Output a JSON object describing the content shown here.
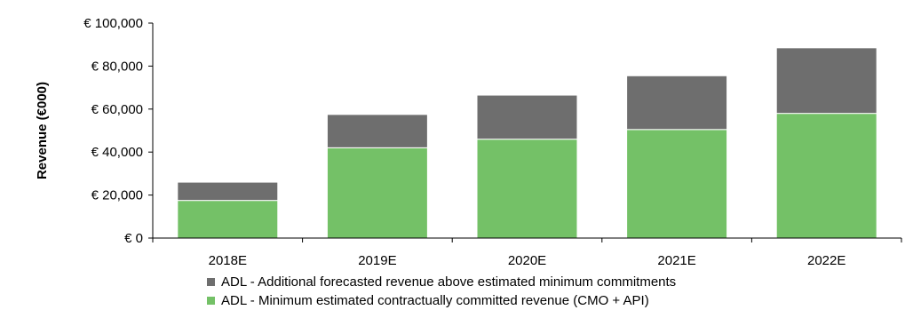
{
  "chart_data": {
    "type": "bar",
    "stacked": true,
    "categories": [
      "2018E",
      "2019E",
      "2020E",
      "2021E",
      "2022E"
    ],
    "series": [
      {
        "name": "ADL - Minimum estimated contractually committed revenue (CMO + API)",
        "color": "#74c167",
        "values": [
          17500,
          42000,
          46000,
          50500,
          58000
        ]
      },
      {
        "name": "ADL - Additional forecasted revenue above estimated minimum commitments",
        "color": "#6e6e6e",
        "values": [
          8500,
          15500,
          20500,
          25000,
          30500
        ]
      }
    ],
    "xlabel": "",
    "ylabel": "Revenue (€000)",
    "ylim": [
      0,
      100000
    ],
    "yticks": [
      "€ 0",
      "€ 20,000",
      "€ 40,000",
      "€ 60,000",
      "€ 80,000",
      "€ 100,000"
    ],
    "grid": false,
    "legend_position": "bottom",
    "legend_order": [
      1,
      0
    ]
  }
}
